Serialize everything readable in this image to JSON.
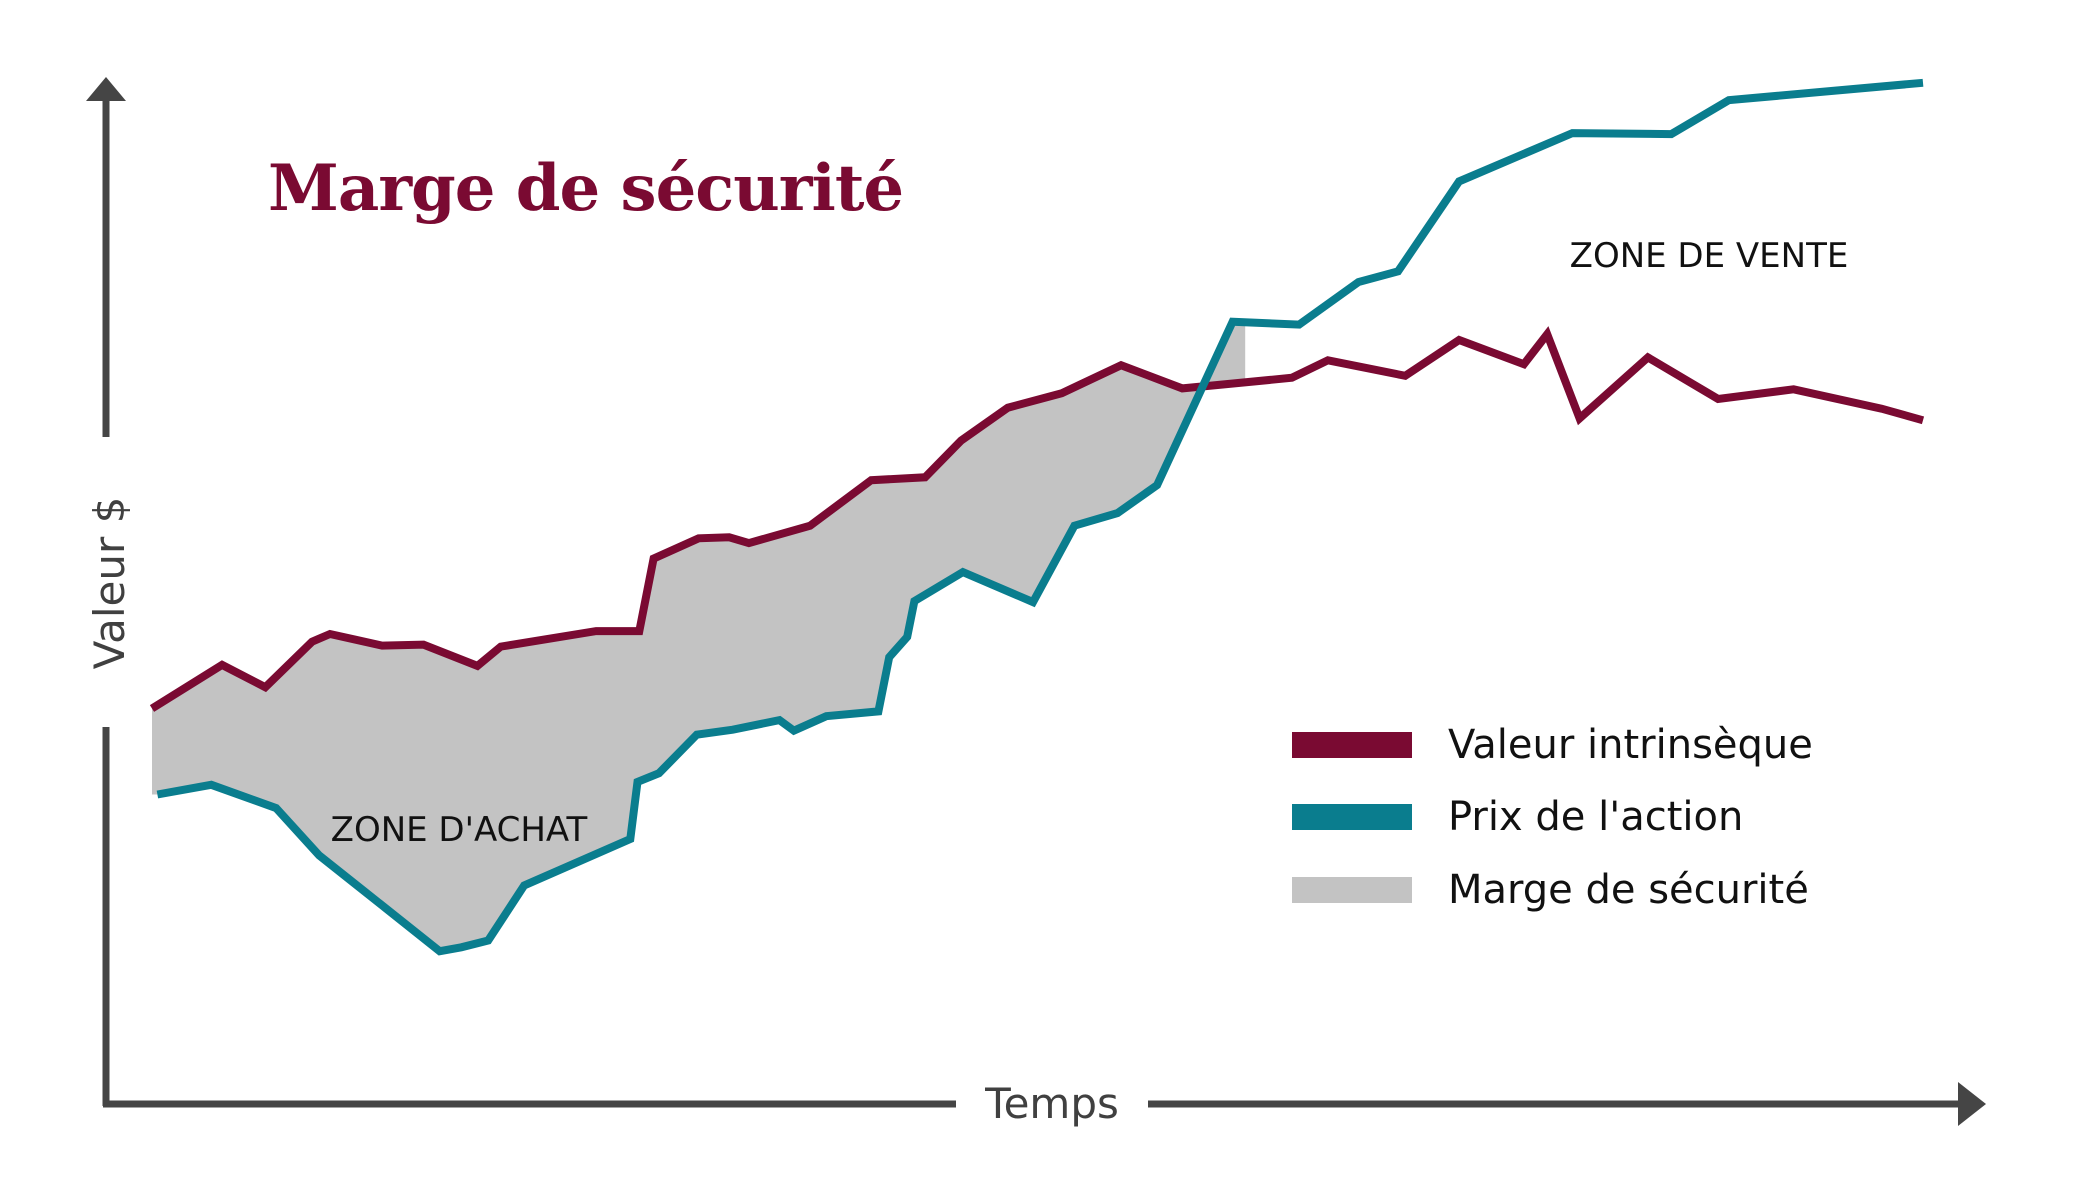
{
  "chart_data": {
    "type": "line",
    "title": "Marge de sécurité",
    "xlabel": "Temps",
    "ylabel": "Valeur $",
    "xlim": [
      0,
      1
    ],
    "ylim": [
      0,
      1
    ],
    "grid": false,
    "legend_position": "bottom-right",
    "annotations": [
      {
        "text": "ZONE D'ACHAT",
        "x": 0.19,
        "y": 0.25
      },
      {
        "text": "ZONE DE VENTE",
        "x": 0.88,
        "y": 0.85
      }
    ],
    "series": [
      {
        "name": "Valeur intrinsèque",
        "color": "#7a0a32",
        "points": [
          [
            0.0,
            0.347
          ],
          [
            0.039,
            0.392
          ],
          [
            0.063,
            0.369
          ],
          [
            0.089,
            0.416
          ],
          [
            0.099,
            0.424
          ],
          [
            0.128,
            0.412
          ],
          [
            0.151,
            0.413
          ],
          [
            0.181,
            0.391
          ],
          [
            0.194,
            0.411
          ],
          [
            0.247,
            0.427
          ],
          [
            0.271,
            0.427
          ],
          [
            0.279,
            0.502
          ],
          [
            0.304,
            0.523
          ],
          [
            0.321,
            0.524
          ],
          [
            0.332,
            0.518
          ],
          [
            0.366,
            0.536
          ],
          [
            0.4,
            0.583
          ],
          [
            0.43,
            0.586
          ],
          [
            0.45,
            0.624
          ],
          [
            0.476,
            0.658
          ],
          [
            0.506,
            0.673
          ],
          [
            0.539,
            0.702
          ],
          [
            0.573,
            0.678
          ],
          [
            0.623,
            0.687
          ],
          [
            0.634,
            0.689
          ],
          [
            0.654,
            0.707
          ],
          [
            0.697,
            0.691
          ],
          [
            0.727,
            0.728
          ],
          [
            0.763,
            0.703
          ],
          [
            0.776,
            0.734
          ],
          [
            0.794,
            0.647
          ],
          [
            0.832,
            0.71
          ],
          [
            0.871,
            0.667
          ],
          [
            0.913,
            0.677
          ],
          [
            0.962,
            0.657
          ],
          [
            0.985,
            0.645
          ]
        ]
      },
      {
        "name": "Prix de l'action",
        "color": "#0a7d8e",
        "points": [
          [
            0.003,
            0.258
          ],
          [
            0.033,
            0.268
          ],
          [
            0.069,
            0.244
          ],
          [
            0.093,
            0.195
          ],
          [
            0.16,
            0.096
          ],
          [
            0.172,
            0.1
          ],
          [
            0.187,
            0.107
          ],
          [
            0.207,
            0.164
          ],
          [
            0.266,
            0.212
          ],
          [
            0.27,
            0.271
          ],
          [
            0.282,
            0.28
          ],
          [
            0.303,
            0.32
          ],
          [
            0.323,
            0.325
          ],
          [
            0.349,
            0.335
          ],
          [
            0.357,
            0.324
          ],
          [
            0.375,
            0.339
          ],
          [
            0.404,
            0.344
          ],
          [
            0.41,
            0.4
          ],
          [
            0.42,
            0.421
          ],
          [
            0.424,
            0.458
          ],
          [
            0.451,
            0.488
          ],
          [
            0.49,
            0.457
          ],
          [
            0.513,
            0.536
          ],
          [
            0.537,
            0.549
          ],
          [
            0.559,
            0.578
          ],
          [
            0.601,
            0.747
          ],
          [
            0.638,
            0.744
          ],
          [
            0.671,
            0.788
          ],
          [
            0.693,
            0.799
          ],
          [
            0.727,
            0.892
          ],
          [
            0.79,
            0.942
          ],
          [
            0.845,
            0.941
          ],
          [
            0.877,
            0.976
          ],
          [
            0.985,
            0.994
          ]
        ]
      }
    ],
    "areas": [
      {
        "name": "Marge de sécurité",
        "color": "#c3c3c3",
        "between": [
          "Valeur intrinsèque",
          "Prix de l'action"
        ],
        "x_range": [
          0.0,
          0.608
        ]
      }
    ]
  }
}
